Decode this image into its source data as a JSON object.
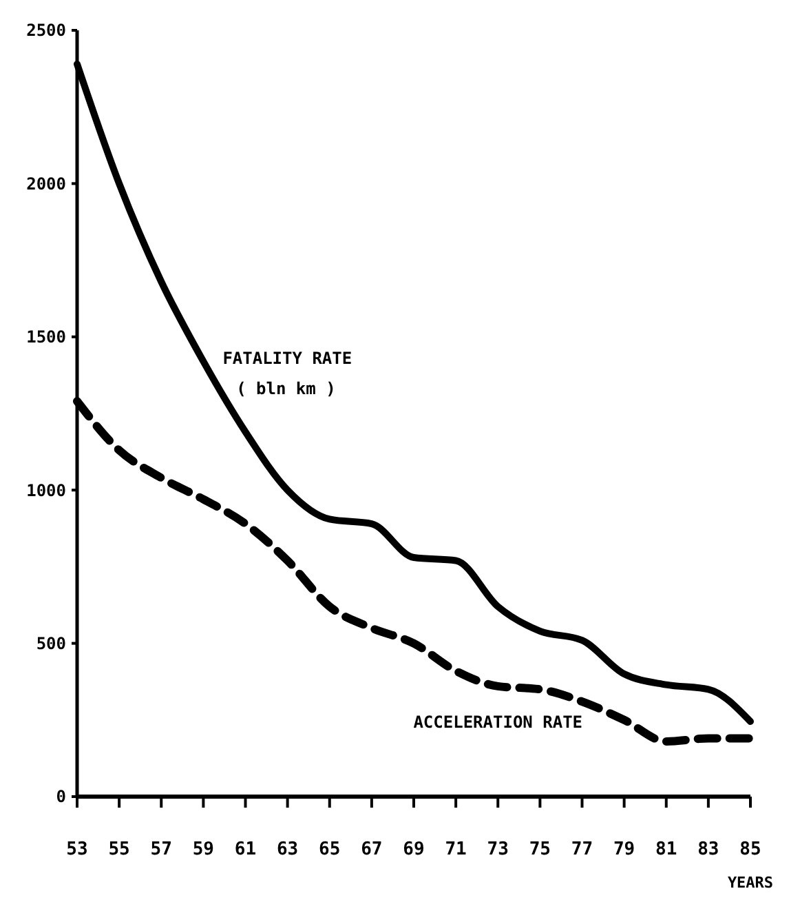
{
  "chart_data": {
    "type": "line",
    "xlabel": "YEARS",
    "x": [
      53,
      55,
      57,
      59,
      61,
      63,
      65,
      67,
      69,
      71,
      73,
      75,
      77,
      79,
      81,
      83,
      85
    ],
    "series": [
      {
        "name": "FATALITY RATE",
        "color": "#000000",
        "line_style": "solid",
        "values": [
          2390,
          2000,
          1680,
          1420,
          1190,
          1000,
          905,
          890,
          780,
          770,
          620,
          540,
          510,
          400,
          365,
          350,
          245
        ]
      },
      {
        "name": "ACCELERATION RATE",
        "color": "#000000",
        "line_style": "dashed",
        "values": [
          1290,
          1130,
          1040,
          970,
          890,
          770,
          620,
          550,
          500,
          410,
          360,
          350,
          310,
          250,
          180,
          190,
          190
        ]
      }
    ],
    "annotations": [
      "( bln km )"
    ],
    "xlim": [
      53,
      85
    ],
    "xticks": [
      53,
      55,
      57,
      59,
      61,
      63,
      65,
      67,
      69,
      71,
      73,
      75,
      77,
      79,
      81,
      83,
      85
    ],
    "ylim": [
      0,
      2500
    ],
    "yticks": [
      0,
      500,
      1000,
      1500,
      2000,
      2500
    ],
    "grid": false,
    "legend": false,
    "marker": "none"
  }
}
